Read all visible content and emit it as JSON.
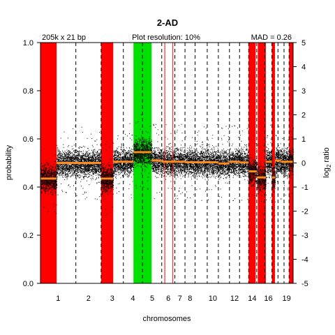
{
  "chart_data": {
    "type": "scatter",
    "title": "2-AD",
    "annotations": {
      "left": "205k x 21 bp",
      "center": "Plot resolution: 10%",
      "right": "MAD = 0.26"
    },
    "xlabel": "chromosomes",
    "ylabel_left": "probability",
    "ylabel_right": {
      "base": "log",
      "sub": "2",
      "rest": " ratio"
    },
    "y_left_ticks": [
      "0.0",
      "0.2",
      "0.4",
      "0.6",
      "0.8",
      "1.0"
    ],
    "y_left_range": [
      0,
      1
    ],
    "y_right_ticks": [
      "5",
      "4",
      "3",
      "2",
      "1",
      "0",
      "-1",
      "-2",
      "-3",
      "-4",
      "-5"
    ],
    "y_right_range": [
      -5,
      5
    ],
    "x_tick_labels": [
      "1",
      "2",
      "3",
      "4",
      "5",
      "6",
      "7",
      "8",
      "10",
      "12",
      "14",
      "16",
      "19"
    ],
    "chromosome_bounds": [
      0,
      3.5,
      6.0,
      8.2,
      10.1,
      12.0,
      13.3,
      14.3,
      15.3,
      16.5,
      17.6,
      18.7,
      19.7,
      20.6,
      21.4,
      22.2,
      22.9,
      23.5,
      24.1,
      24.6,
      25.0
    ],
    "x_tick_positions": [
      1.75,
      4.75,
      7.1,
      9.15,
      11.05,
      12.65,
      13.8,
      14.8,
      17.05,
      19.2,
      20.95,
      22.55,
      24.35
    ],
    "xlim": [
      0,
      25
    ],
    "grid": false,
    "shaded_regions": [
      {
        "from": 0.0,
        "to": 1.6,
        "color": "#ff0000"
      },
      {
        "from": 6.0,
        "to": 7.2,
        "color": "#ff0000"
      },
      {
        "from": 9.2,
        "to": 11.0,
        "color": "#00e000"
      },
      {
        "from": 20.6,
        "to": 21.3,
        "color": "#ff0000"
      },
      {
        "from": 21.5,
        "to": 22.3,
        "color": "#ff0000"
      },
      {
        "from": 22.9,
        "to": 23.2,
        "color": "#ff0000"
      },
      {
        "from": 24.6,
        "to": 25.0,
        "color": "#ff0000"
      }
    ],
    "red_lines": [
      12.3,
      13.1
    ],
    "segments": [
      {
        "from": 0.0,
        "to": 1.6,
        "value": 0.435
      },
      {
        "from": 1.6,
        "to": 6.0,
        "value": 0.5
      },
      {
        "from": 6.0,
        "to": 7.2,
        "value": 0.435
      },
      {
        "from": 7.2,
        "to": 9.2,
        "value": 0.505
      },
      {
        "from": 9.2,
        "to": 11.0,
        "value": 0.545
      },
      {
        "from": 11.0,
        "to": 12.0,
        "value": 0.51
      },
      {
        "from": 12.0,
        "to": 14.3,
        "value": 0.505
      },
      {
        "from": 14.3,
        "to": 17.6,
        "value": 0.503
      },
      {
        "from": 17.6,
        "to": 18.7,
        "value": 0.498
      },
      {
        "from": 18.7,
        "to": 19.7,
        "value": 0.505
      },
      {
        "from": 19.7,
        "to": 20.6,
        "value": 0.502
      },
      {
        "from": 20.6,
        "to": 21.4,
        "value": 0.465
      },
      {
        "from": 21.4,
        "to": 22.3,
        "value": 0.44
      },
      {
        "from": 22.3,
        "to": 22.9,
        "value": 0.505
      },
      {
        "from": 22.9,
        "to": 23.2,
        "value": 0.44
      },
      {
        "from": 23.2,
        "to": 23.8,
        "value": 0.51
      },
      {
        "from": 23.8,
        "to": 25.0,
        "value": 0.505
      }
    ],
    "segment_color": "#ff8c1a",
    "point_color": "#000000"
  }
}
